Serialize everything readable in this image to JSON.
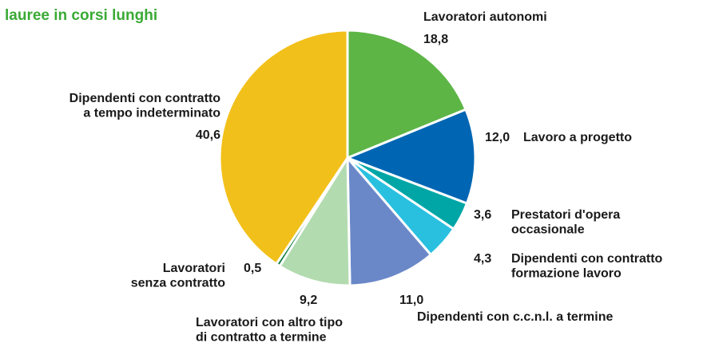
{
  "chart_data": {
    "type": "pie",
    "title": "lauree in corsi lunghi",
    "categories": [
      "Lavoratori autonomi",
      "Lavoro a progetto",
      "Prestatori d'opera\noccasionale",
      "Dipendenti con contratto\nformazione lavoro",
      "Dipendenti con c.c.n.l. a termine",
      "Lavoratori con altro tipo\ndi contratto a termine",
      "Lavoratori\nsenza contratto",
      "Dipendenti con contratto\na tempo indeterminato"
    ],
    "values": [
      18.8,
      12.0,
      3.6,
      4.3,
      11.0,
      9.2,
      0.5,
      40.6
    ],
    "value_labels": [
      "18,8",
      "12,0",
      "3,6",
      "4,3",
      "11,0",
      "9,2",
      "0,5",
      "40,6"
    ],
    "colors": [
      "#5db546",
      "#0066b3",
      "#00a6a6",
      "#29c0e0",
      "#6a88c8",
      "#b3dbb0",
      "#0a7a3a",
      "#f2c01a"
    ]
  }
}
